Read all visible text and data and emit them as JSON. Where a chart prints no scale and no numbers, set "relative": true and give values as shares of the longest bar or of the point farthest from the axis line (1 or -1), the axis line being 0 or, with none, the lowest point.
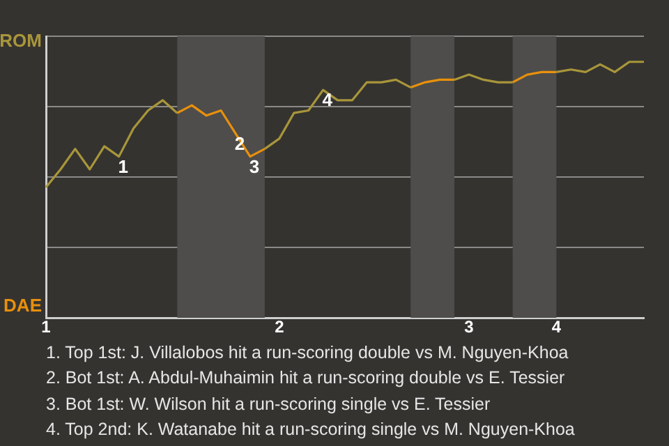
{
  "chart_data": {
    "type": "line",
    "categories": [
      "1",
      null,
      null,
      null,
      null,
      null,
      null,
      null,
      null,
      null,
      null,
      null,
      null,
      null,
      null,
      null,
      "2",
      null,
      null,
      null,
      null,
      null,
      null,
      null,
      null,
      null,
      null,
      null,
      null,
      "3",
      null,
      null,
      null,
      null,
      null,
      "4",
      null,
      null,
      null,
      null,
      null,
      null
    ],
    "relative": true,
    "series": [
      {
        "name": "ROM",
        "color": "#a8963a",
        "values": [
          0.51,
          0.58,
          0.66,
          0.58,
          0.67,
          0.63,
          0.74,
          0.81,
          0.85,
          0.8,
          null,
          null,
          null,
          null,
          null,
          0.66,
          0.7,
          0.8,
          0.81,
          0.89,
          0.85,
          0.85,
          0.92,
          0.92,
          0.93,
          0.9,
          null,
          null,
          0.93,
          0.95,
          0.93,
          0.92,
          0.92,
          null,
          null,
          0.96,
          0.97,
          0.96,
          0.99,
          0.96,
          1,
          1
        ]
      },
      {
        "name": "DAE",
        "color": "#e8900c",
        "values": [
          null,
          null,
          null,
          null,
          null,
          null,
          null,
          null,
          null,
          0.8,
          0.83,
          0.79,
          0.81,
          0.72,
          0.63,
          0.66,
          null,
          null,
          null,
          null,
          null,
          null,
          null,
          null,
          null,
          0.9,
          0.92,
          0.93,
          0.93,
          null,
          null,
          null,
          0.92,
          0.95,
          0.96,
          0.96,
          null,
          null,
          null,
          null,
          null,
          null
        ]
      }
    ],
    "grid": "y",
    "legend": "left",
    "annotations": [
      {
        "text": "1",
        "y": 0.63
      },
      {
        "text": "2",
        "y": 0.72
      },
      {
        "text": "3",
        "y": 0.63
      },
      {
        "text": "4",
        "y": 0.89
      },
      "1. Top 1st: J. Villalobos hit a run-scoring double vs M. Nguyen-Khoa",
      "2. Bot 1st: A. Abdul-Muhaimin hit a run-scoring double vs E. Tessier",
      "3. Bot 1st: W. Wilson hit a run-scoring single vs E. Tessier",
      "4. Top 2nd: K. Watanabe hit a run-scoring single vs M. Nguyen-Khoa"
    ]
  }
}
